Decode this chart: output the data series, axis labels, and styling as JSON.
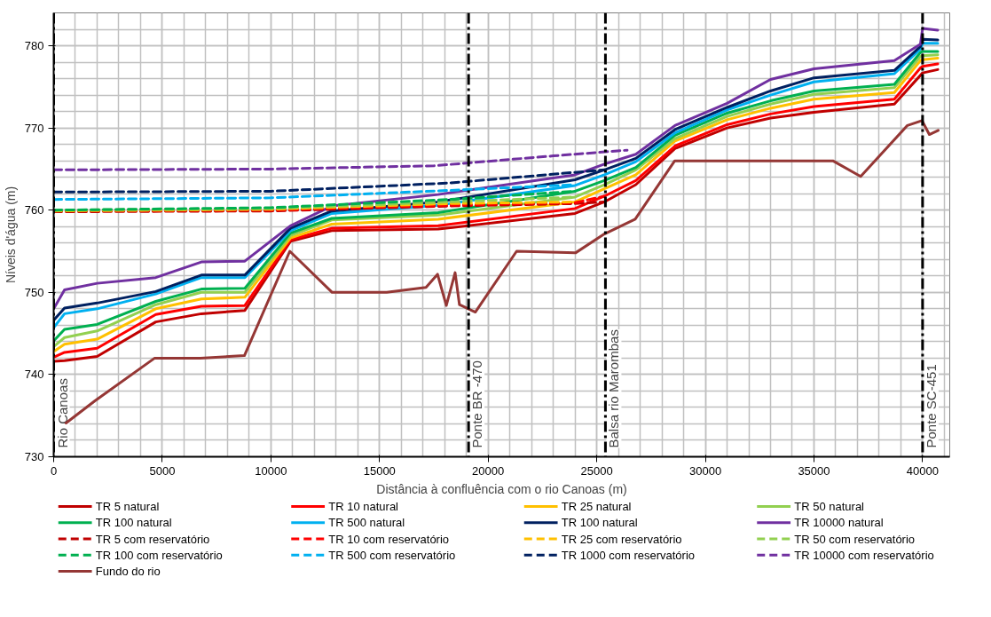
{
  "chart_data": {
    "type": "line",
    "xlabel": "Distância à confluência com o rio Canoas (m)",
    "ylabel": "Níveis d'água (m)",
    "xlim": [
      0,
      41250
    ],
    "ylim": [
      730,
      784
    ],
    "xticks": [
      0,
      5000,
      10000,
      15000,
      20000,
      25000,
      30000,
      35000,
      40000
    ],
    "yticks": [
      730,
      740,
      750,
      760,
      770,
      780
    ],
    "grid": true,
    "legend": "bottom",
    "x": [
      0,
      500,
      2000,
      4700,
      6800,
      8800,
      10900,
      12800,
      17700,
      24000,
      25350,
      26800,
      28600,
      31000,
      33000,
      35000,
      38700,
      39900,
      40000,
      40700
    ],
    "series": [
      {
        "name": "TR 5 natural",
        "color": "#c00000",
        "line_style": "solid",
        "values": [
          741.6,
          741.7,
          742.2,
          746.4,
          747.4,
          747.8,
          756.2,
          757.5,
          757.7,
          759.6,
          761.0,
          763.1,
          767.5,
          770.0,
          771.2,
          771.9,
          772.9,
          776.4,
          776.7,
          777.1
        ]
      },
      {
        "name": "TR 10 natural",
        "color": "#ff0000",
        "line_style": "solid",
        "values": [
          742.1,
          742.7,
          743.2,
          747.3,
          748.3,
          748.4,
          756.4,
          757.8,
          758.1,
          760.2,
          761.7,
          763.6,
          767.8,
          770.4,
          771.7,
          772.6,
          773.5,
          777.3,
          777.5,
          777.8
        ]
      },
      {
        "name": "TR 25 natural",
        "color": "#ffc000",
        "line_style": "solid",
        "values": [
          742.8,
          743.7,
          744.3,
          748.0,
          749.2,
          749.4,
          756.6,
          758.3,
          758.9,
          761.0,
          762.6,
          764.3,
          768.4,
          771.0,
          772.4,
          773.5,
          774.3,
          778.2,
          778.3,
          778.5
        ]
      },
      {
        "name": "TR 50 natural",
        "color": "#92d050",
        "line_style": "solid",
        "values": [
          743.4,
          744.5,
          745.3,
          748.5,
          750.0,
          750.0,
          756.9,
          758.8,
          759.4,
          761.6,
          763.1,
          764.9,
          768.7,
          771.4,
          772.9,
          774.1,
          774.9,
          778.7,
          778.8,
          778.9
        ]
      },
      {
        "name": "TR 100 natural",
        "color": "#00b050",
        "line_style": "solid",
        "values": [
          744.1,
          745.5,
          746.1,
          748.9,
          750.4,
          750.5,
          757.2,
          759.0,
          759.7,
          762.3,
          763.6,
          765.2,
          769.1,
          771.8,
          773.3,
          774.5,
          775.3,
          779.2,
          779.3,
          779.3
        ]
      },
      {
        "name": "TR 500 natural",
        "color": "#00b0f0",
        "line_style": "solid",
        "values": [
          745.7,
          747.4,
          748.0,
          749.8,
          751.8,
          751.8,
          757.5,
          759.6,
          760.6,
          763.0,
          764.3,
          765.9,
          769.4,
          772.2,
          774.0,
          775.6,
          776.6,
          779.6,
          780.3,
          780.3
        ]
      },
      {
        "name": "TR 100 natural",
        "color": "#002060",
        "line_style": "solid",
        "values": [
          746.6,
          748.1,
          748.7,
          750.1,
          752.1,
          752.1,
          757.8,
          759.9,
          761.0,
          763.7,
          764.9,
          766.3,
          769.8,
          772.5,
          774.5,
          776.1,
          777.0,
          779.9,
          780.8,
          780.7
        ]
      },
      {
        "name": "TR 10000 natural",
        "color": "#7030a0",
        "line_style": "solid",
        "values": [
          748.0,
          750.3,
          751.1,
          751.8,
          753.7,
          753.8,
          758.1,
          760.5,
          761.9,
          764.3,
          765.6,
          766.8,
          770.3,
          773.0,
          775.9,
          777.2,
          778.2,
          780.2,
          782.1,
          781.9
        ]
      },
      {
        "name": "TR 5 com reservatório",
        "color": "#c00000",
        "line_style": "dashed",
        "x": [
          0,
          10000,
          18200,
          24000,
          25350
        ],
        "values": [
          759.8,
          759.9,
          760.5,
          760.8,
          761.0
        ]
      },
      {
        "name": "TR 10 com reservatório",
        "color": "#ff0000",
        "line_style": "dashed",
        "x": [
          0,
          10000,
          18200,
          24000,
          25350
        ],
        "values": [
          759.9,
          760.0,
          760.6,
          760.9,
          761.7
        ]
      },
      {
        "name": "TR 25 com reservatório",
        "color": "#ffc000",
        "line_style": "dashed",
        "x": [
          0,
          10000,
          18200,
          24000
        ],
        "values": [
          759.9,
          760.1,
          760.8,
          761.0
        ]
      },
      {
        "name": "TR 50 com reservatório",
        "color": "#92d050",
        "line_style": "dashed",
        "x": [
          0,
          10000,
          18200,
          24000
        ],
        "values": [
          760.0,
          760.2,
          761.0,
          761.6
        ]
      },
      {
        "name": "TR 100 com reservatório",
        "color": "#00b050",
        "line_style": "dashed",
        "x": [
          0,
          10000,
          18200,
          24000
        ],
        "values": [
          760.0,
          760.3,
          761.3,
          762.3
        ]
      },
      {
        "name": "TR 500 com reservatório",
        "color": "#00b0f0",
        "line_style": "dashed",
        "x": [
          0,
          10000,
          18200,
          24000
        ],
        "values": [
          761.3,
          761.5,
          762.4,
          763.1
        ]
      },
      {
        "name": "TR 1000 com reservatório",
        "color": "#002060",
        "line_style": "dashed",
        "x": [
          0,
          10000,
          18200,
          25350
        ],
        "values": [
          762.2,
          762.3,
          763.3,
          764.9
        ]
      },
      {
        "name": "TR 10000 com reservatório",
        "color": "#7030a0",
        "line_style": "dashed",
        "x": [
          0,
          10000,
          17500,
          23000,
          26400
        ],
        "values": [
          764.9,
          765.0,
          765.4,
          766.6,
          767.3
        ]
      },
      {
        "name": "Fundo do rio",
        "color": "#953735",
        "line_style": "solid",
        "x": [
          570,
          1900,
          4650,
          6750,
          8780,
          10870,
          12820,
          15330,
          17140,
          17670,
          18075,
          18480,
          18680,
          19410,
          21310,
          24020,
          25350,
          26770,
          28590,
          35870,
          37150,
          39300,
          39970,
          40310,
          40720
        ],
        "values": [
          734.1,
          736.8,
          742.0,
          742.0,
          742.3,
          755.0,
          750.0,
          750.0,
          750.6,
          752.2,
          748.4,
          752.4,
          748.5,
          747.6,
          755.0,
          754.8,
          757.1,
          758.9,
          766.0,
          766.0,
          764.1,
          770.3,
          770.9,
          769.2,
          769.7
        ]
      }
    ],
    "ref_lines": [
      {
        "axis": "x",
        "value": 0,
        "label": "Rio Canoas",
        "color": "#000000",
        "line_style": "dashdot"
      },
      {
        "axis": "x",
        "value": 19100,
        "label": "Ponte BR -470",
        "color": "#000000",
        "line_style": "dashdot"
      },
      {
        "axis": "x",
        "value": 25400,
        "label": "Balsa rio Marombas",
        "color": "#000000",
        "line_style": "dashdot"
      },
      {
        "axis": "x",
        "value": 40000,
        "label": "Ponte SC-451",
        "color": "#000000",
        "line_style": "dashdot"
      }
    ]
  }
}
